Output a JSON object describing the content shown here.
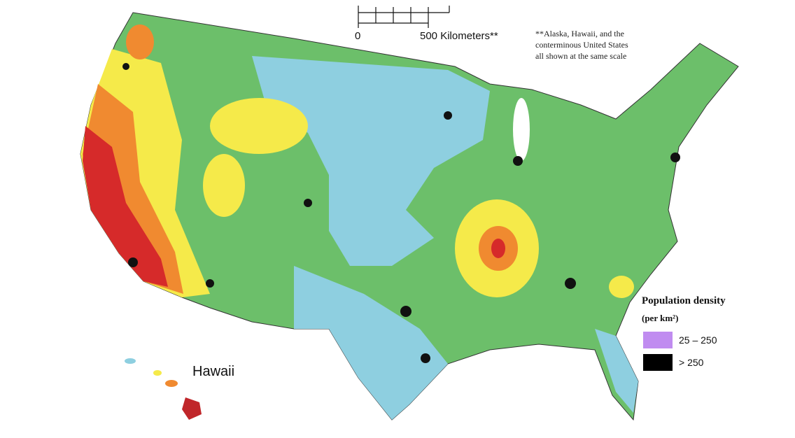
{
  "scale_bar": {
    "start": "0",
    "label": "500 Kilometers**"
  },
  "note": [
    "**Alaska, Hawaii, and the",
    "conterminous United States",
    "all shown at the same scale"
  ],
  "inset_label": "Hawaii",
  "legend": {
    "title": "Population density",
    "unit": "(per km²)",
    "items": [
      {
        "label": "25 – 250",
        "color": "#c08cf0"
      },
      {
        "label": "> 250",
        "color": "#000000"
      }
    ]
  }
}
